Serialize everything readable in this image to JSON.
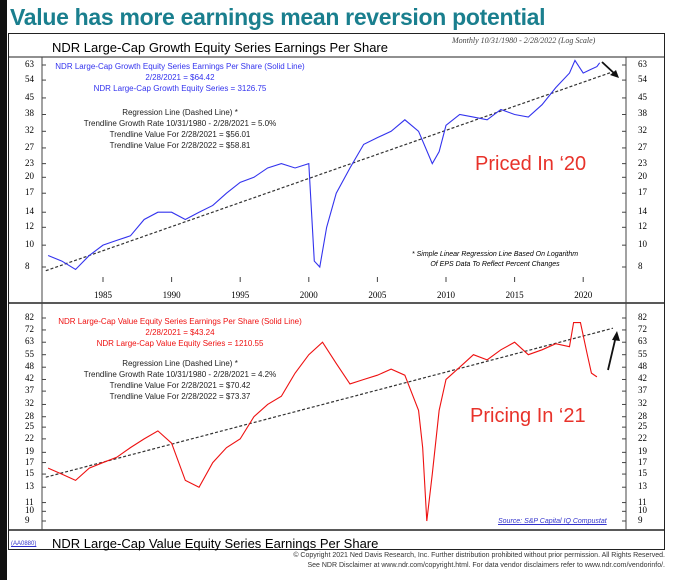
{
  "title": "Value has more earnings mean reversion potential",
  "subtitle": "Monthly 10/31/1980 - 2/28/2022 (Log Scale)",
  "footer": {
    "code": "(AA0880)",
    "copyright": "© Copyright 2021 Ned Davis Research, Inc.  Further distribution prohibited without prior permission.  All Rights Reserved.",
    "disclaimer": "See NDR Disclaimer at www.ndr.com/copyright.html. For data vendor disclaimers refer to www.ndr.com/vendorinfo/."
  },
  "chart_data": [
    {
      "type": "line",
      "title": "NDR Large-Cap Growth Equity Series Earnings Per Share",
      "color": "#3333ee",
      "yscale": "log",
      "ylim": [
        7.5,
        68
      ],
      "yticks": [
        63,
        54,
        45,
        38,
        32,
        27,
        23,
        20,
        17,
        14,
        12,
        10,
        8
      ],
      "xticks": [
        1985,
        1990,
        1995,
        2000,
        2005,
        2010,
        2015,
        2020
      ],
      "legend": [
        "NDR Large-Cap Growth Equity Series Earnings Per Share (Solid Line)",
        "2/28/2021 = $64.42",
        "NDR Large-Cap Growth Equity Series = 3126.75"
      ],
      "regression": [
        "Regression Line (Dashed Line) *",
        "Trendline Growth Rate 10/31/1980 - 2/28/2021 = 5.0%",
        "Trendline Value For 2/28/2021 = $56.01",
        "Trendline Value For 2/28/2022 = $58.81"
      ],
      "note": [
        "* Simple Linear Regression Line Based On Logarithm",
        "Of EPS Data To Reflect Percent Changes"
      ],
      "annotation": "Priced In ‘20",
      "x": [
        1981,
        1982,
        1983,
        1984,
        1985,
        1986,
        1987,
        1988,
        1989,
        1990,
        1991,
        1992,
        1993,
        1994,
        1995,
        1996,
        1997,
        1998,
        1999,
        2000,
        2000.4,
        2000.8,
        2001.3,
        2002,
        2003,
        2004,
        2005,
        2006,
        2007,
        2008,
        2009,
        2009.5,
        2010,
        2011,
        2012,
        2013,
        2014,
        2015,
        2016,
        2017,
        2018,
        2019,
        2019.4,
        2020,
        2020.5,
        2021,
        2021.2
      ],
      "values": [
        9,
        8.5,
        7.8,
        9,
        10,
        10.5,
        11,
        13,
        14,
        14,
        13,
        14,
        15,
        17,
        19,
        20,
        22,
        23,
        22,
        23,
        8.5,
        8,
        12,
        17,
        22,
        28,
        30,
        32,
        36,
        32,
        23,
        26,
        34,
        38,
        37,
        36,
        40,
        38,
        37,
        42,
        50,
        58,
        66,
        58,
        60,
        62,
        64.4
      ],
      "trend": {
        "x": [
          1980.83,
          2022.17
        ],
        "values": [
          7.7,
          58.81
        ]
      }
    },
    {
      "type": "line",
      "title": "NDR Large-Cap Value Equity Series Earnings Per Share",
      "color": "#ee1111",
      "yscale": "log",
      "ylim": [
        8.6,
        86
      ],
      "yticks": [
        82,
        72,
        63,
        55,
        48,
        42,
        37,
        32,
        28,
        25,
        22,
        19,
        17,
        15,
        13,
        11,
        10,
        9
      ],
      "legend": [
        "NDR Large-Cap Value Equity Series Earnings Per Share (Solid Line)",
        "2/28/2021 = $43.24",
        "NDR Large-Cap Value Equity Series = 1210.55"
      ],
      "regression": [
        "Regression Line (Dashed Line) *",
        "Trendline Growth Rate 10/31/1980 - 2/28/2021 = 4.2%",
        "Trendline Value For 2/28/2021 = $70.42",
        "Trendline Value For 2/28/2022 = $73.37"
      ],
      "source": "Source: S&P Capital IQ Compustat",
      "annotation": "Pricing In ‘21",
      "x": [
        1981,
        1982,
        1983,
        1984,
        1985,
        1986,
        1987,
        1988,
        1989,
        1990,
        1991,
        1992,
        1993,
        1994,
        1995,
        1996,
        1997,
        1998,
        1999,
        2000,
        2001,
        2002,
        2003,
        2004,
        2005,
        2006,
        2007,
        2008,
        2008.3,
        2008.6,
        2009,
        2009.5,
        2010,
        2011,
        2012,
        2013,
        2014,
        2015,
        2016,
        2017,
        2018,
        2019,
        2019.3,
        2019.8,
        2020.3,
        2020.6,
        2021
      ],
      "values": [
        16,
        15,
        14,
        16,
        17,
        18,
        20,
        22,
        24,
        21,
        14,
        13,
        17,
        20,
        22,
        28,
        32,
        35,
        45,
        55,
        63,
        50,
        40,
        42,
        44,
        47,
        44,
        30,
        20,
        9,
        15,
        30,
        42,
        48,
        55,
        52,
        58,
        63,
        55,
        58,
        62,
        60,
        78,
        78,
        55,
        45,
        43.2
      ],
      "trend": {
        "x": [
          1980.83,
          2022.17
        ],
        "values": [
          14.5,
          73.37
        ]
      }
    }
  ]
}
